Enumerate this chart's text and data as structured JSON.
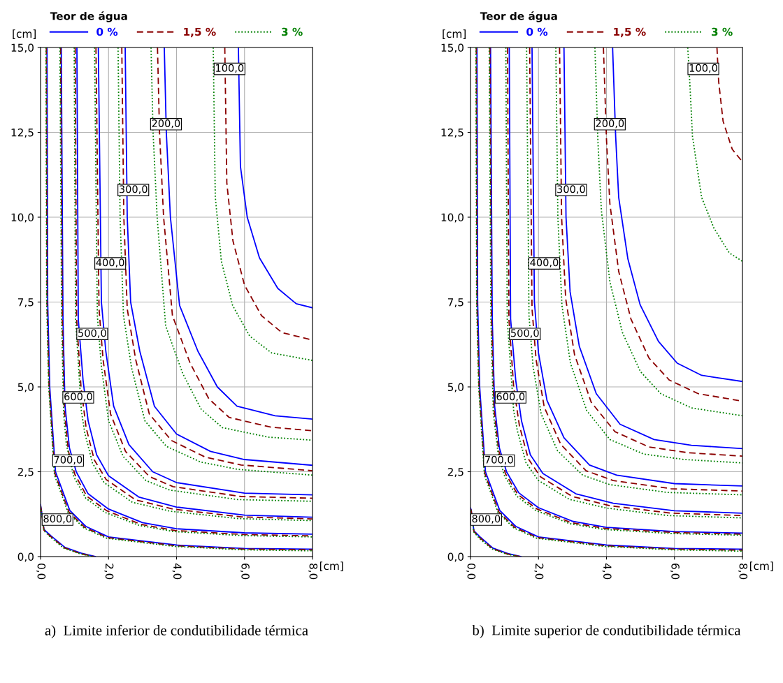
{
  "chart_data": [
    {
      "type": "line",
      "legend_title": "Teor de água",
      "xlabel": "[cm]",
      "ylabel": "[cm]",
      "xlim": [
        0,
        8
      ],
      "ylim": [
        0,
        15
      ],
      "xticks": [
        {
          "value": 0,
          "label": "0,0"
        },
        {
          "value": 2,
          "label": "2,0"
        },
        {
          "value": 4,
          "label": "4,0"
        },
        {
          "value": 6,
          "label": "6,0"
        },
        {
          "value": 8,
          "label": "8,0"
        }
      ],
      "yticks": [
        {
          "value": 0,
          "label": "0,0"
        },
        {
          "value": 2.5,
          "label": "2,5"
        },
        {
          "value": 5,
          "label": "5,0"
        },
        {
          "value": 7.5,
          "label": "7,5"
        },
        {
          "value": 10,
          "label": "10,0"
        },
        {
          "value": 12.5,
          "label": "12,5"
        },
        {
          "value": 15,
          "label": "15,0"
        }
      ],
      "grid": true,
      "legend": "top",
      "annotations": [
        {
          "text": "100,0",
          "x": 5.13,
          "y": 14.37
        },
        {
          "text": "200,0",
          "x": 3.26,
          "y": 12.74
        },
        {
          "text": "300,0",
          "x": 2.3,
          "y": 10.8
        },
        {
          "text": "400,0",
          "x": 1.62,
          "y": 8.64
        },
        {
          "text": "500,0",
          "x": 1.09,
          "y": 6.56
        },
        {
          "text": "600,0",
          "x": 0.68,
          "y": 4.69
        },
        {
          "text": "700,0",
          "x": 0.38,
          "y": 2.83
        },
        {
          "text": "800,0",
          "x": 0.07,
          "y": 1.09
        },
        "a)  Limite inferior de condutibilidade térmica"
      ],
      "series": [
        {
          "name": "0 %",
          "color": "#0000ff",
          "line_style": "solid",
          "x": [
            5.82,
            5.88,
            6.08,
            6.44,
            6.98,
            7.52,
            8.0
          ],
          "values": [
            15,
            11.5,
            10.0,
            8.8,
            7.9,
            7.45,
            7.33
          ]
        },
        {
          "name": "1,5 %",
          "color": "#8b0000",
          "line_style": "dashed",
          "x": [
            5.42,
            5.48,
            5.66,
            6.0,
            6.5,
            7.1,
            8.0
          ],
          "values": [
            15,
            11.0,
            9.3,
            8.0,
            7.1,
            6.6,
            6.38
          ]
        },
        {
          "name": "3 %",
          "color": "#008000",
          "line_style": "dotted",
          "x": [
            5.08,
            5.14,
            5.32,
            5.65,
            6.15,
            6.8,
            8.0
          ],
          "values": [
            15,
            10.6,
            8.7,
            7.4,
            6.5,
            6.0,
            5.78
          ]
        },
        {
          "color": "#0000ff",
          "line_style": "solid",
          "x": [
            3.64,
            3.7,
            3.82,
            4.09,
            4.63,
            5.2,
            5.78,
            6.9,
            8.0
          ],
          "values": [
            15,
            12.5,
            10,
            7.4,
            6.05,
            5.0,
            4.43,
            4.15,
            4.05
          ]
        },
        {
          "color": "#8b0000",
          "line_style": "dashed",
          "x": [
            3.44,
            3.5,
            3.62,
            3.88,
            4.4,
            4.95,
            5.55,
            6.8,
            8.0
          ],
          "values": [
            15,
            12.5,
            10,
            7.1,
            5.7,
            4.65,
            4.1,
            3.81,
            3.71
          ]
        },
        {
          "color": "#008000",
          "line_style": "dotted",
          "x": [
            3.25,
            3.31,
            3.43,
            3.68,
            4.18,
            4.72,
            5.35,
            6.7,
            8.0
          ],
          "values": [
            15,
            12.5,
            10,
            6.8,
            5.4,
            4.35,
            3.8,
            3.52,
            3.43
          ]
        },
        {
          "color": "#0000ff",
          "line_style": "solid",
          "x": [
            2.49,
            2.55,
            2.65,
            2.92,
            3.35,
            4.0,
            5.0,
            6.0,
            8.0
          ],
          "values": [
            15,
            10,
            7.5,
            6.05,
            4.43,
            3.61,
            3.1,
            2.86,
            2.69
          ]
        },
        {
          "color": "#8b0000",
          "line_style": "dashed",
          "x": [
            2.39,
            2.45,
            2.55,
            2.8,
            3.2,
            3.85,
            4.85,
            5.9,
            8.0
          ],
          "values": [
            15,
            10,
            7.3,
            5.8,
            4.2,
            3.42,
            2.93,
            2.7,
            2.53
          ]
        },
        {
          "color": "#008000",
          "line_style": "dotted",
          "x": [
            2.28,
            2.34,
            2.44,
            2.68,
            3.07,
            3.7,
            4.7,
            5.8,
            8.0
          ],
          "values": [
            15,
            10,
            7.1,
            5.55,
            4.0,
            3.25,
            2.79,
            2.57,
            2.4
          ]
        },
        {
          "color": "#0000ff",
          "line_style": "solid",
          "x": [
            1.7,
            1.79,
            1.92,
            2.15,
            2.6,
            3.3,
            4.0,
            6.0,
            8.0
          ],
          "values": [
            15,
            7.5,
            6.05,
            4.43,
            3.3,
            2.5,
            2.18,
            1.87,
            1.82
          ]
        },
        {
          "color": "#8b0000",
          "line_style": "dashed",
          "x": [
            1.63,
            1.72,
            1.84,
            2.06,
            2.5,
            3.2,
            3.9,
            5.9,
            8.0
          ],
          "values": [
            15,
            7.3,
            5.8,
            4.2,
            3.1,
            2.36,
            2.06,
            1.77,
            1.72
          ]
        },
        {
          "color": "#008000",
          "line_style": "dotted",
          "x": [
            1.59,
            1.67,
            1.79,
            2.0,
            2.43,
            3.1,
            3.8,
            5.8,
            8.0
          ],
          "values": [
            15,
            7.1,
            5.6,
            4.0,
            2.95,
            2.24,
            1.96,
            1.68,
            1.63
          ]
        },
        {
          "color": "#0000ff",
          "line_style": "solid",
          "x": [
            1.07,
            1.11,
            1.25,
            1.4,
            1.65,
            2.0,
            2.9,
            4.0,
            6.0,
            8.0
          ],
          "values": [
            15,
            7,
            5.2,
            4.0,
            3.0,
            2.38,
            1.75,
            1.46,
            1.22,
            1.16
          ]
        },
        {
          "color": "#8b0000",
          "line_style": "dashed",
          "x": [
            1.02,
            1.06,
            1.19,
            1.34,
            1.58,
            1.93,
            2.8,
            3.9,
            5.9,
            8.0
          ],
          "values": [
            15,
            7,
            5.0,
            3.8,
            2.85,
            2.27,
            1.67,
            1.4,
            1.17,
            1.11
          ]
        },
        {
          "color": "#008000",
          "line_style": "dotted",
          "x": [
            0.99,
            1.03,
            1.2,
            1.3,
            1.53,
            1.87,
            2.7,
            3.8,
            5.8,
            8.0
          ],
          "values": [
            15,
            7,
            4.3,
            3.65,
            2.75,
            2.18,
            1.6,
            1.34,
            1.12,
            1.06
          ]
        },
        {
          "color": "#0000ff",
          "line_style": "solid",
          "x": [
            0.61,
            0.66,
            0.72,
            0.85,
            1.05,
            1.4,
            2.0,
            3.0,
            4.0,
            6.0,
            8.0
          ],
          "values": [
            15,
            7,
            4.43,
            3.2,
            2.5,
            1.85,
            1.4,
            1.0,
            0.82,
            0.7,
            0.66
          ]
        },
        {
          "color": "#8b0000",
          "line_style": "dashed",
          "x": [
            0.59,
            0.64,
            0.7,
            0.82,
            1.01,
            1.36,
            1.95,
            2.95,
            3.95,
            5.95,
            8.0
          ],
          "values": [
            15,
            7,
            4.3,
            3.1,
            2.42,
            1.78,
            1.35,
            0.95,
            0.77,
            0.65,
            0.61
          ]
        },
        {
          "color": "#008000",
          "line_style": "dotted",
          "x": [
            0.57,
            0.62,
            0.68,
            0.76,
            0.98,
            1.33,
            1.9,
            2.9,
            3.9,
            5.9,
            8.0
          ],
          "values": [
            15,
            7,
            4.2,
            3.3,
            2.35,
            1.72,
            1.3,
            0.92,
            0.74,
            0.62,
            0.58
          ]
        },
        {
          "color": "#0000ff",
          "line_style": "solid",
          "x": [
            0.19,
            0.21,
            0.27,
            0.44,
            0.86,
            1.33,
            2.0,
            4.0,
            6.0,
            8.0
          ],
          "values": [
            15,
            7.5,
            5,
            2.5,
            1.36,
            0.89,
            0.58,
            0.34,
            0.24,
            0.22
          ]
        },
        {
          "color": "#8b0000",
          "line_style": "dashed",
          "x": [
            0.17,
            0.19,
            0.25,
            0.42,
            0.83,
            1.3,
            1.97,
            3.97,
            5.97,
            8.0
          ],
          "values": [
            15,
            7.5,
            5,
            2.45,
            1.32,
            0.86,
            0.56,
            0.32,
            0.22,
            0.2
          ]
        },
        {
          "color": "#008000",
          "line_style": "dotted",
          "x": [
            0.16,
            0.18,
            0.24,
            0.41,
            0.81,
            1.28,
            1.95,
            3.95,
            5.95,
            8.0
          ],
          "values": [
            15,
            7.5,
            5,
            2.4,
            1.3,
            0.84,
            0.54,
            0.3,
            0.2,
            0.17
          ]
        },
        {
          "color": "#0000ff",
          "line_style": "solid",
          "x": [
            0,
            0.02,
            0.1,
            0.31,
            0.72,
            1.2,
            1.61
          ],
          "values": [
            1.53,
            1.4,
            0.8,
            0.61,
            0.27,
            0.1,
            0
          ]
        },
        {
          "color": "#8b0000",
          "line_style": "dashed",
          "x": [
            0,
            0.02,
            0.1,
            0.3,
            0.7,
            1.17,
            1.57
          ],
          "values": [
            1.5,
            1.38,
            0.78,
            0.59,
            0.26,
            0.09,
            0
          ]
        },
        {
          "color": "#008000",
          "line_style": "dotted",
          "x": [
            0,
            0.02,
            0.1,
            0.29,
            0.68,
            1.14,
            1.53
          ],
          "values": [
            1.47,
            1.36,
            0.76,
            0.57,
            0.25,
            0.09,
            0
          ]
        }
      ]
    },
    {
      "type": "line",
      "legend_title": "Teor de água",
      "xlabel": "[cm]",
      "ylabel": "[cm]",
      "xlim": [
        0,
        8
      ],
      "ylim": [
        0,
        15
      ],
      "xticks": [
        {
          "value": 0,
          "label": "0,0"
        },
        {
          "value": 2,
          "label": "2,0"
        },
        {
          "value": 4,
          "label": "4,0"
        },
        {
          "value": 6,
          "label": "6,0"
        },
        {
          "value": 8,
          "label": "8,0"
        }
      ],
      "yticks": [
        {
          "value": 0,
          "label": "0,0"
        },
        {
          "value": 2.5,
          "label": "2,5"
        },
        {
          "value": 5,
          "label": "5,0"
        },
        {
          "value": 7.5,
          "label": "7,5"
        },
        {
          "value": 10,
          "label": "10,0"
        },
        {
          "value": 12.5,
          "label": "12,5"
        },
        {
          "value": 15,
          "label": "15,0"
        }
      ],
      "grid": true,
      "legend": "top",
      "annotations": [
        {
          "text": "100,0",
          "x": 6.42,
          "y": 14.37
        },
        {
          "text": "200,0",
          "x": 3.67,
          "y": 12.74
        },
        {
          "text": "300,0",
          "x": 2.53,
          "y": 10.8
        },
        {
          "text": "400,0",
          "x": 1.74,
          "y": 8.64
        },
        {
          "text": "500,0",
          "x": 1.17,
          "y": 6.56
        },
        {
          "text": "600,0",
          "x": 0.75,
          "y": 4.69
        },
        {
          "text": "700,0",
          "x": 0.41,
          "y": 2.83
        },
        {
          "text": "800,0",
          "x": 0.03,
          "y": 1.09
        },
        "b)  Limite superior de condutibilidade térmica"
      ],
      "series": [
        {
          "name": "0 %",
          "color": "#0000ff",
          "line_style": "solid",
          "x": [
            4.18,
            4.27,
            4.36,
            4.63,
            4.99,
            5.53,
            6.08,
            6.8,
            8.0
          ],
          "values": [
            15,
            12.38,
            10.58,
            8.77,
            7.42,
            6.34,
            5.7,
            5.34,
            5.16
          ]
        },
        {
          "name": "1,5 %",
          "color": "#8b0000",
          "line_style": "dashed",
          "x": [
            7.25,
            7.3,
            7.43,
            7.7,
            8.0
          ],
          "values": [
            15,
            14,
            12.83,
            12.0,
            11.63
          ]
        },
        {
          "name": "3 %",
          "color": "#008000",
          "line_style": "dotted",
          "x": [
            6.39,
            6.45,
            6.53,
            6.8,
            7.16,
            7.61,
            8.0
          ],
          "values": [
            15,
            14,
            12.38,
            10.58,
            9.68,
            8.95,
            8.7
          ]
        },
        {
          "color": "#8b0000",
          "line_style": "dashed",
          "x": [
            3.91,
            4.0,
            4.1,
            4.36,
            4.72,
            5.25,
            5.85,
            6.7,
            8.0
          ],
          "values": [
            15,
            12.3,
            10.4,
            8.4,
            7.0,
            5.85,
            5.2,
            4.8,
            4.58
          ]
        },
        {
          "color": "#008000",
          "line_style": "dotted",
          "x": [
            3.66,
            3.75,
            3.85,
            4.1,
            4.47,
            5.0,
            5.6,
            6.5,
            8.0
          ],
          "values": [
            15,
            12.2,
            10.2,
            8.1,
            6.6,
            5.45,
            4.8,
            4.38,
            4.15
          ]
        },
        {
          "color": "#0000ff",
          "line_style": "solid",
          "x": [
            2.75,
            2.81,
            2.93,
            3.2,
            3.7,
            4.4,
            5.4,
            6.5,
            8.0
          ],
          "values": [
            15,
            10,
            7.8,
            6.2,
            4.8,
            3.9,
            3.45,
            3.28,
            3.18
          ]
        },
        {
          "color": "#8b0000",
          "line_style": "dashed",
          "x": [
            2.62,
            2.68,
            2.8,
            3.06,
            3.55,
            4.25,
            5.25,
            6.4,
            8.0
          ],
          "values": [
            15,
            10,
            7.6,
            5.95,
            4.55,
            3.68,
            3.23,
            3.06,
            2.96
          ]
        },
        {
          "color": "#008000",
          "line_style": "dotted",
          "x": [
            2.51,
            2.57,
            2.69,
            2.94,
            3.42,
            4.1,
            5.1,
            6.3,
            8.0
          ],
          "values": [
            15,
            10,
            7.4,
            5.7,
            4.3,
            3.45,
            3.02,
            2.86,
            2.76
          ]
        },
        {
          "color": "#0000ff",
          "line_style": "solid",
          "x": [
            1.81,
            1.88,
            2.0,
            2.25,
            2.75,
            3.5,
            4.3,
            6.0,
            8.0
          ],
          "values": [
            15,
            7.5,
            6.0,
            4.6,
            3.5,
            2.7,
            2.4,
            2.15,
            2.08
          ]
        },
        {
          "color": "#8b0000",
          "line_style": "dashed",
          "x": [
            1.74,
            1.81,
            1.93,
            2.17,
            2.66,
            3.4,
            4.2,
            5.9,
            8.0
          ],
          "values": [
            15,
            7.3,
            5.8,
            4.4,
            3.3,
            2.53,
            2.24,
            2.0,
            1.93
          ]
        },
        {
          "color": "#008000",
          "line_style": "dotted",
          "x": [
            1.65,
            1.72,
            1.84,
            2.08,
            2.56,
            3.3,
            4.1,
            5.8,
            8.0
          ],
          "values": [
            15,
            7.1,
            5.6,
            4.2,
            3.12,
            2.4,
            2.12,
            1.89,
            1.82
          ]
        },
        {
          "color": "#0000ff",
          "line_style": "solid",
          "x": [
            1.14,
            1.18,
            1.33,
            1.5,
            1.76,
            2.13,
            3.1,
            4.2,
            6.0,
            8.0
          ],
          "values": [
            15,
            7,
            5.2,
            4.0,
            3.0,
            2.45,
            1.85,
            1.57,
            1.35,
            1.28
          ]
        },
        {
          "color": "#8b0000",
          "line_style": "dashed",
          "x": [
            1.09,
            1.13,
            1.27,
            1.44,
            1.7,
            2.06,
            3.0,
            4.1,
            5.9,
            8.0
          ],
          "values": [
            15,
            7,
            5.0,
            3.85,
            2.88,
            2.35,
            1.77,
            1.5,
            1.28,
            1.21
          ]
        },
        {
          "color": "#008000",
          "line_style": "dotted",
          "x": [
            1.04,
            1.08,
            1.27,
            1.38,
            1.63,
            1.99,
            2.9,
            4.0,
            5.8,
            8.0
          ],
          "values": [
            15,
            7,
            4.3,
            3.7,
            2.77,
            2.25,
            1.69,
            1.43,
            1.21,
            1.14
          ]
        },
        {
          "color": "#0000ff",
          "line_style": "solid",
          "x": [
            0.59,
            0.64,
            0.71,
            0.85,
            1.06,
            1.42,
            2.0,
            3.0,
            4.0,
            6.0,
            8.0
          ],
          "values": [
            15,
            7,
            4.43,
            3.2,
            2.5,
            1.88,
            1.44,
            1.04,
            0.86,
            0.74,
            0.69
          ]
        },
        {
          "color": "#8b0000",
          "line_style": "dashed",
          "x": [
            0.57,
            0.62,
            0.69,
            0.83,
            1.03,
            1.39,
            1.96,
            2.96,
            3.96,
            5.96,
            8.0
          ],
          "values": [
            15,
            7,
            4.35,
            3.12,
            2.44,
            1.83,
            1.4,
            1.0,
            0.83,
            0.71,
            0.66
          ]
        },
        {
          "color": "#008000",
          "line_style": "dotted",
          "x": [
            0.55,
            0.6,
            0.67,
            0.81,
            1.0,
            1.36,
            1.92,
            2.92,
            3.92,
            5.92,
            8.0
          ],
          "values": [
            15,
            7,
            4.25,
            3.05,
            2.38,
            1.78,
            1.36,
            0.97,
            0.8,
            0.68,
            0.63
          ]
        },
        {
          "color": "#0000ff",
          "line_style": "solid",
          "x": [
            0.19,
            0.21,
            0.27,
            0.44,
            0.86,
            1.33,
            2.0,
            4.0,
            6.0,
            8.0
          ],
          "values": [
            15,
            7.5,
            5,
            2.5,
            1.36,
            0.89,
            0.58,
            0.34,
            0.24,
            0.22
          ]
        },
        {
          "color": "#8b0000",
          "line_style": "dashed",
          "x": [
            0.17,
            0.19,
            0.25,
            0.42,
            0.83,
            1.3,
            1.97,
            3.97,
            5.97,
            8.0
          ],
          "values": [
            15,
            7.5,
            5,
            2.45,
            1.32,
            0.86,
            0.56,
            0.32,
            0.22,
            0.19
          ]
        },
        {
          "color": "#008000",
          "line_style": "dotted",
          "x": [
            0.16,
            0.18,
            0.24,
            0.41,
            0.81,
            1.28,
            1.95,
            3.95,
            5.95,
            8.0
          ],
          "values": [
            15,
            7.5,
            5,
            2.4,
            1.3,
            0.84,
            0.54,
            0.3,
            0.2,
            0.16
          ]
        },
        {
          "color": "#0000ff",
          "line_style": "solid",
          "x": [
            0,
            0.02,
            0.1,
            0.29,
            0.66,
            1.1,
            1.48
          ],
          "values": [
            1.43,
            1.38,
            0.76,
            0.57,
            0.25,
            0.09,
            0
          ]
        },
        {
          "color": "#8b0000",
          "line_style": "dashed",
          "x": [
            0,
            0.02,
            0.1,
            0.28,
            0.64,
            1.07,
            1.45
          ],
          "values": [
            1.4,
            1.36,
            0.74,
            0.55,
            0.24,
            0.08,
            0
          ]
        },
        {
          "color": "#008000",
          "line_style": "dotted",
          "x": [
            0,
            0.02,
            0.1,
            0.27,
            0.62,
            1.04,
            1.42
          ],
          "values": [
            1.37,
            1.34,
            0.72,
            0.53,
            0.23,
            0.08,
            0
          ]
        }
      ]
    }
  ]
}
